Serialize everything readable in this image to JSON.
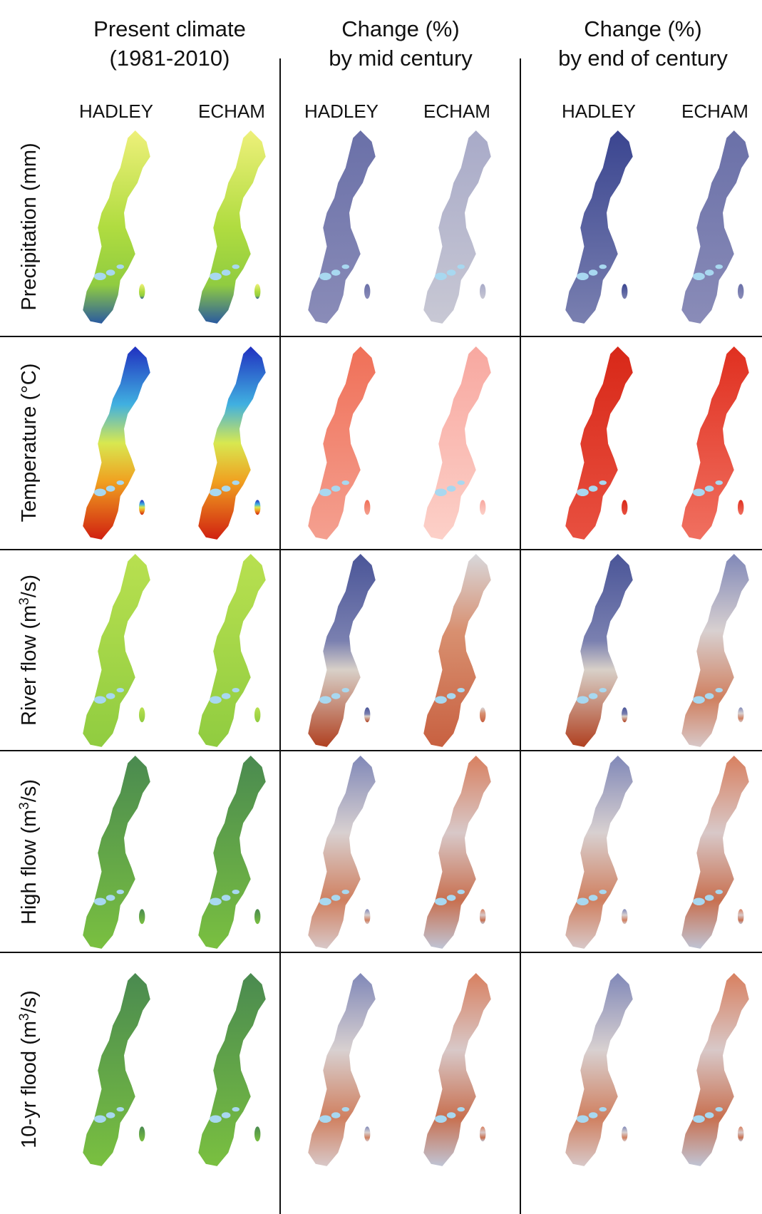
{
  "header": {
    "columns": [
      {
        "lines": [
          "Present climate",
          "(1981-2010)"
        ],
        "models": [
          "HADLEY",
          "ECHAM"
        ]
      },
      {
        "lines": [
          "Change (%)",
          "by mid century"
        ],
        "models": [
          "HADLEY",
          "ECHAM"
        ]
      },
      {
        "lines": [
          "Change (%)",
          "by end of century"
        ],
        "models": [
          "HADLEY",
          "ECHAM"
        ]
      }
    ]
  },
  "rows": [
    {
      "label": "Precipitation (mm)"
    },
    {
      "label": "Temperature (°C)"
    },
    {
      "label": "River flow (m",
      "sup": "3",
      "tail": "/s)"
    },
    {
      "label": "High flow (m",
      "sup": "3",
      "tail": "/s)"
    },
    {
      "label": "10-yr flood (m",
      "sup": "3",
      "tail": "/s)"
    }
  ]
}
